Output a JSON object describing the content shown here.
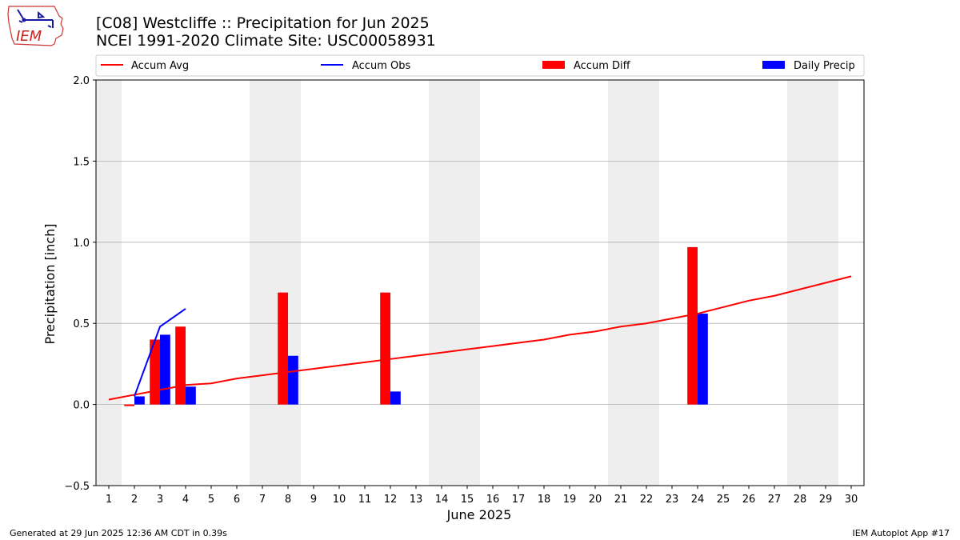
{
  "header": {
    "title_line1": "[C08] Westcliffe :: Precipitation for Jun 2025",
    "title_line2": "NCEI 1991-2020 Climate Site: USC00058931",
    "logo_text": "IEM"
  },
  "footer": {
    "generated": "Generated at 29 Jun 2025 12:36 AM CDT in 0.39s",
    "app": "IEM Autoplot App #17"
  },
  "colors": {
    "accum_avg": "#ff0000",
    "accum_obs": "#0000ff",
    "accum_diff": "#ff0000",
    "daily_precip": "#0000ff",
    "weekend_band": "#eeeeee",
    "grid": "#b0b0b0"
  },
  "chart_data": {
    "type": "bar",
    "title": "[C08] Westcliffe :: Precipitation for Jun 2025",
    "xlabel": "June 2025",
    "ylabel": "Precipitation [inch]",
    "xlim": [
      0.5,
      30.5
    ],
    "ylim": [
      -0.5,
      2.0
    ],
    "xticks": [
      1,
      2,
      3,
      4,
      5,
      6,
      7,
      8,
      9,
      10,
      11,
      12,
      13,
      14,
      15,
      16,
      17,
      18,
      19,
      20,
      21,
      22,
      23,
      24,
      25,
      26,
      27,
      28,
      29,
      30
    ],
    "yticks": [
      -0.5,
      0.0,
      0.5,
      1.0,
      1.5,
      2.0
    ],
    "ytick_labels": [
      "−0.5",
      "0.0",
      "0.5",
      "1.0",
      "1.5",
      "2.0"
    ],
    "grid": "horizontal",
    "legend_position": "top, above plot",
    "legend": [
      "Accum Avg",
      "Accum Obs",
      "Accum Diff",
      "Daily Precip"
    ],
    "weekend_bands": [
      [
        0.5,
        1.5
      ],
      [
        6.5,
        8.5
      ],
      [
        13.5,
        15.5
      ],
      [
        20.5,
        22.5
      ],
      [
        27.5,
        29.5
      ]
    ],
    "series": [
      {
        "name": "Accum Avg",
        "kind": "line",
        "x": [
          1,
          2,
          3,
          4,
          5,
          6,
          7,
          8,
          9,
          10,
          11,
          12,
          13,
          14,
          15,
          16,
          17,
          18,
          19,
          20,
          21,
          22,
          23,
          24,
          25,
          26,
          27,
          28,
          29,
          30
        ],
        "values": [
          0.03,
          0.06,
          0.09,
          0.12,
          0.13,
          0.16,
          0.18,
          0.2,
          0.22,
          0.24,
          0.26,
          0.28,
          0.3,
          0.32,
          0.34,
          0.36,
          0.38,
          0.4,
          0.43,
          0.45,
          0.48,
          0.5,
          0.53,
          0.56,
          0.6,
          0.64,
          0.67,
          0.71,
          0.75,
          0.79
        ]
      },
      {
        "name": "Accum Obs",
        "kind": "line",
        "x": [
          2,
          3,
          4
        ],
        "values": [
          0.05,
          0.48,
          0.59
        ]
      },
      {
        "name": "Accum Diff",
        "kind": "bar",
        "x": [
          2,
          3,
          4,
          8,
          12,
          24
        ],
        "values": [
          -0.01,
          0.4,
          0.48,
          0.69,
          0.69,
          0.97
        ]
      },
      {
        "name": "Daily Precip",
        "kind": "bar",
        "x": [
          2,
          3,
          4,
          8,
          12,
          24
        ],
        "values": [
          0.05,
          0.43,
          0.11,
          0.3,
          0.08,
          0.56
        ]
      }
    ]
  }
}
